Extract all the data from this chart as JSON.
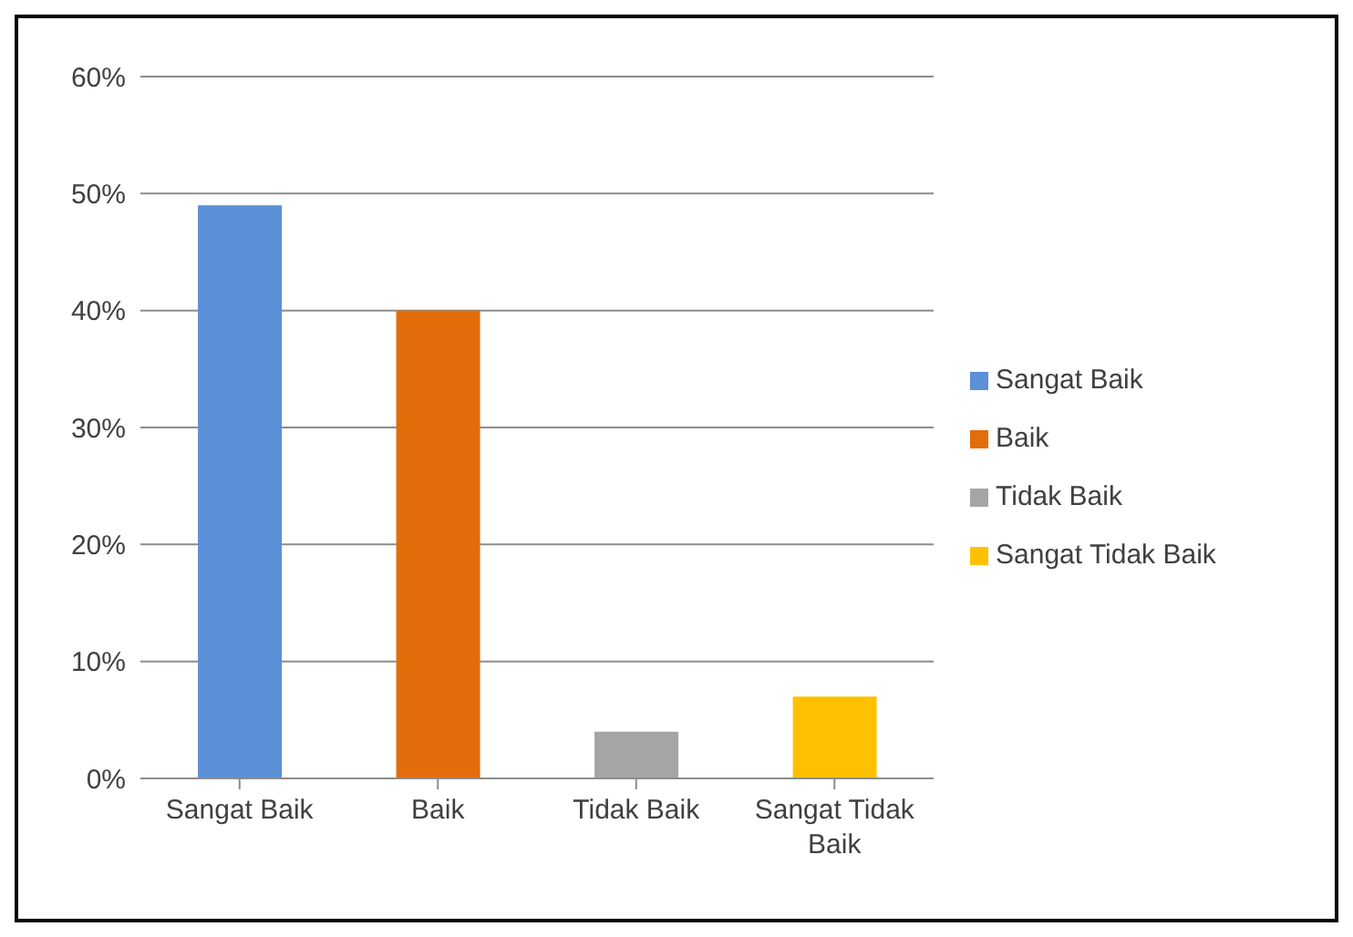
{
  "chart_data": {
    "type": "bar",
    "categories": [
      "Sangat Baik",
      "Baik",
      "Tidak Baik",
      "Sangat Tidak Baik"
    ],
    "series": [
      {
        "name": "Sangat Baik",
        "color": "#5b8fd6",
        "values": [
          49,
          null,
          null,
          null
        ]
      },
      {
        "name": "Baik",
        "color": "#e36c0a",
        "values": [
          null,
          40,
          null,
          null
        ]
      },
      {
        "name": "Tidak Baik",
        "color": "#a5a5a5",
        "values": [
          null,
          null,
          4,
          null
        ]
      },
      {
        "name": "Sangat Tidak Baik",
        "color": "#ffc000",
        "values": [
          null,
          null,
          null,
          7
        ]
      }
    ],
    "ylim": [
      0,
      60
    ],
    "yticks": [
      {
        "value": 0,
        "label": "0%"
      },
      {
        "value": 10,
        "label": "10%"
      },
      {
        "value": 20,
        "label": "20%"
      },
      {
        "value": 30,
        "label": "30%"
      },
      {
        "value": 40,
        "label": "40%"
      },
      {
        "value": 50,
        "label": "50%"
      },
      {
        "value": 60,
        "label": "60%"
      }
    ],
    "grid": "y",
    "legend": "right"
  }
}
